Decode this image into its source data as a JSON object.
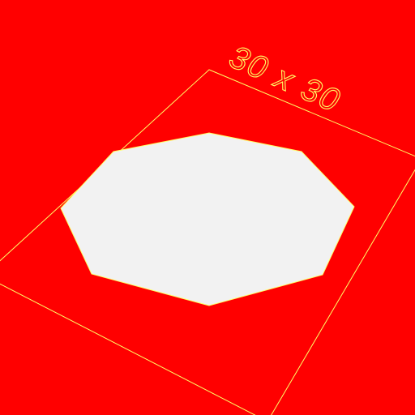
{
  "scene": {
    "background_color": "#ff0000",
    "outline_color": "#ffff66",
    "shape_fill_color": "#f2f2f2",
    "shape": "octagon",
    "dimension_label": "30 x 30"
  }
}
